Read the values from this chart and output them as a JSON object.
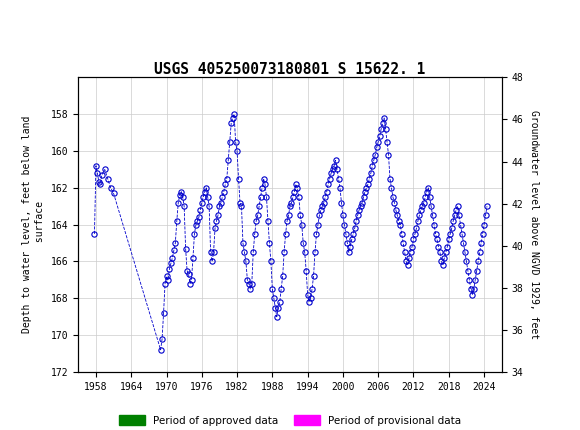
{
  "title": "USGS 405250073180801 S 15622. 1",
  "ylabel_left": "Depth to water level, feet below land\n surface",
  "ylabel_right": "Groundwater level above NGVD 1929, feet",
  "ylim_left": [
    172,
    156
  ],
  "ylim_right": [
    34,
    48
  ],
  "xlim": [
    1955,
    2027
  ],
  "yticks_left": [
    158,
    160,
    162,
    164,
    166,
    168,
    170,
    172
  ],
  "yticks_right": [
    34,
    36,
    38,
    40,
    42,
    44,
    46,
    48
  ],
  "xticks": [
    1958,
    1964,
    1970,
    1976,
    1982,
    1988,
    1994,
    2000,
    2006,
    2012,
    2018,
    2024
  ],
  "header_color": "#1a5c38",
  "data_color": "#0000cc",
  "approved_color": "#008000",
  "provisional_color": "#ff00ff",
  "background_color": "#ffffff",
  "grid_color": "#cccccc",
  "approved_bar_start": 1957.0,
  "approved_bar_end1": 1961.5,
  "approved_bar_start2": 1968.5,
  "approved_bar_end2": 2023.5,
  "provisional_bar_start": 2023.5,
  "provisional_bar_end": 2026.5,
  "bar_y": 172.0,
  "bar_thickness": 0.28,
  "legend_approved": "Period of approved data",
  "legend_provisional": "Period of provisional data",
  "x_data": [
    1957.75,
    1958.0,
    1958.25,
    1958.5,
    1958.75,
    1959.0,
    1959.5,
    1960.0,
    1960.5,
    1961.0,
    1969.0,
    1969.25,
    1969.5,
    1969.75,
    1970.0,
    1970.25,
    1970.5,
    1970.75,
    1971.0,
    1971.25,
    1971.5,
    1971.75,
    1972.0,
    1972.25,
    1972.5,
    1972.75,
    1973.0,
    1973.25,
    1973.5,
    1973.75,
    1974.0,
    1974.25,
    1974.5,
    1974.75,
    1975.0,
    1975.25,
    1975.5,
    1975.75,
    1976.0,
    1976.25,
    1976.5,
    1976.75,
    1977.0,
    1977.25,
    1977.5,
    1977.75,
    1978.0,
    1978.25,
    1978.5,
    1978.75,
    1979.0,
    1979.25,
    1979.5,
    1979.75,
    1980.0,
    1980.25,
    1980.5,
    1980.75,
    1981.0,
    1981.25,
    1981.5,
    1981.75,
    1982.0,
    1982.25,
    1982.5,
    1982.75,
    1983.0,
    1983.25,
    1983.5,
    1983.75,
    1984.0,
    1984.25,
    1984.5,
    1984.75,
    1985.0,
    1985.25,
    1985.5,
    1985.75,
    1986.0,
    1986.25,
    1986.5,
    1986.75,
    1987.0,
    1987.25,
    1987.5,
    1987.75,
    1988.0,
    1988.25,
    1988.5,
    1988.75,
    1989.0,
    1989.25,
    1989.5,
    1989.75,
    1990.0,
    1990.25,
    1990.5,
    1990.75,
    1991.0,
    1991.25,
    1991.5,
    1991.75,
    1992.0,
    1992.25,
    1992.5,
    1992.75,
    1993.0,
    1993.25,
    1993.5,
    1993.75,
    1994.0,
    1994.25,
    1994.5,
    1994.75,
    1995.0,
    1995.25,
    1995.5,
    1995.75,
    1996.0,
    1996.25,
    1996.5,
    1996.75,
    1997.0,
    1997.25,
    1997.5,
    1997.75,
    1998.0,
    1998.25,
    1998.5,
    1998.75,
    1999.0,
    1999.25,
    1999.5,
    1999.75,
    2000.0,
    2000.25,
    2000.5,
    2000.75,
    2001.0,
    2001.25,
    2001.5,
    2001.75,
    2002.0,
    2002.25,
    2002.5,
    2002.75,
    2003.0,
    2003.25,
    2003.5,
    2003.75,
    2004.0,
    2004.25,
    2004.5,
    2004.75,
    2005.0,
    2005.25,
    2005.5,
    2005.75,
    2006.0,
    2006.25,
    2006.5,
    2006.75,
    2007.0,
    2007.25,
    2007.5,
    2007.75,
    2008.0,
    2008.25,
    2008.5,
    2008.75,
    2009.0,
    2009.25,
    2009.5,
    2009.75,
    2010.0,
    2010.25,
    2010.5,
    2010.75,
    2011.0,
    2011.25,
    2011.5,
    2011.75,
    2012.0,
    2012.25,
    2012.5,
    2012.75,
    2013.0,
    2013.25,
    2013.5,
    2013.75,
    2014.0,
    2014.25,
    2014.5,
    2014.75,
    2015.0,
    2015.25,
    2015.5,
    2015.75,
    2016.0,
    2016.25,
    2016.5,
    2016.75,
    2017.0,
    2017.25,
    2017.5,
    2017.75,
    2018.0,
    2018.25,
    2018.5,
    2018.75,
    2019.0,
    2019.25,
    2019.5,
    2019.75,
    2020.0,
    2020.25,
    2020.5,
    2020.75,
    2021.0,
    2021.25,
    2021.5,
    2021.75,
    2022.0,
    2022.25,
    2022.5,
    2022.75,
    2023.0,
    2023.25,
    2023.5,
    2023.75,
    2024.0,
    2024.25,
    2024.5
  ],
  "y_data": [
    164.5,
    160.8,
    161.2,
    161.7,
    161.8,
    161.3,
    161.0,
    161.5,
    162.0,
    162.3,
    170.8,
    170.2,
    168.8,
    167.2,
    166.8,
    167.0,
    166.4,
    166.1,
    165.8,
    165.4,
    165.0,
    163.8,
    162.8,
    162.4,
    162.2,
    162.5,
    163.0,
    165.3,
    166.5,
    166.7,
    167.2,
    167.0,
    165.8,
    164.5,
    164.0,
    163.8,
    163.6,
    163.2,
    162.8,
    162.5,
    162.2,
    162.0,
    162.5,
    163.0,
    165.5,
    166.0,
    165.5,
    164.2,
    163.8,
    163.5,
    163.0,
    162.8,
    162.5,
    162.2,
    161.8,
    161.5,
    160.5,
    159.5,
    158.5,
    158.2,
    158.0,
    159.5,
    160.0,
    161.5,
    162.8,
    163.0,
    165.0,
    165.5,
    166.0,
    167.0,
    167.2,
    167.5,
    167.2,
    165.5,
    164.5,
    163.8,
    163.5,
    163.0,
    162.5,
    162.0,
    161.5,
    161.8,
    162.5,
    163.8,
    165.0,
    166.0,
    167.5,
    168.0,
    168.5,
    169.0,
    168.5,
    168.2,
    167.5,
    166.8,
    165.5,
    164.5,
    163.8,
    163.5,
    163.0,
    162.8,
    162.5,
    162.2,
    161.8,
    162.0,
    162.5,
    163.5,
    164.0,
    165.0,
    165.5,
    166.5,
    167.8,
    168.2,
    168.0,
    167.5,
    166.8,
    165.5,
    164.5,
    164.0,
    163.5,
    163.2,
    163.0,
    162.8,
    162.5,
    162.2,
    161.8,
    161.5,
    161.2,
    161.0,
    160.8,
    160.5,
    161.0,
    161.5,
    162.0,
    162.8,
    163.5,
    164.0,
    164.5,
    165.0,
    165.5,
    165.2,
    164.8,
    164.5,
    164.2,
    163.8,
    163.5,
    163.2,
    163.0,
    162.8,
    162.5,
    162.2,
    162.0,
    161.8,
    161.5,
    161.2,
    160.8,
    160.5,
    160.2,
    159.8,
    159.5,
    159.2,
    158.8,
    158.5,
    158.2,
    158.8,
    159.5,
    160.2,
    161.5,
    162.0,
    162.5,
    162.8,
    163.2,
    163.5,
    163.8,
    164.0,
    164.5,
    165.0,
    165.5,
    166.0,
    166.2,
    165.8,
    165.5,
    165.2,
    164.8,
    164.5,
    164.2,
    163.8,
    163.5,
    163.2,
    163.0,
    162.8,
    162.5,
    162.2,
    162.0,
    162.5,
    163.0,
    163.5,
    164.0,
    164.5,
    164.8,
    165.2,
    165.5,
    166.0,
    166.2,
    165.8,
    165.5,
    165.2,
    164.8,
    164.5,
    164.2,
    163.8,
    163.5,
    163.2,
    163.0,
    163.5,
    164.0,
    164.5,
    165.0,
    165.5,
    166.0,
    166.5,
    167.0,
    167.5,
    167.8,
    167.5,
    167.0,
    166.5,
    166.0,
    165.5,
    165.0,
    164.5,
    164.0,
    163.5,
    163.0
  ]
}
